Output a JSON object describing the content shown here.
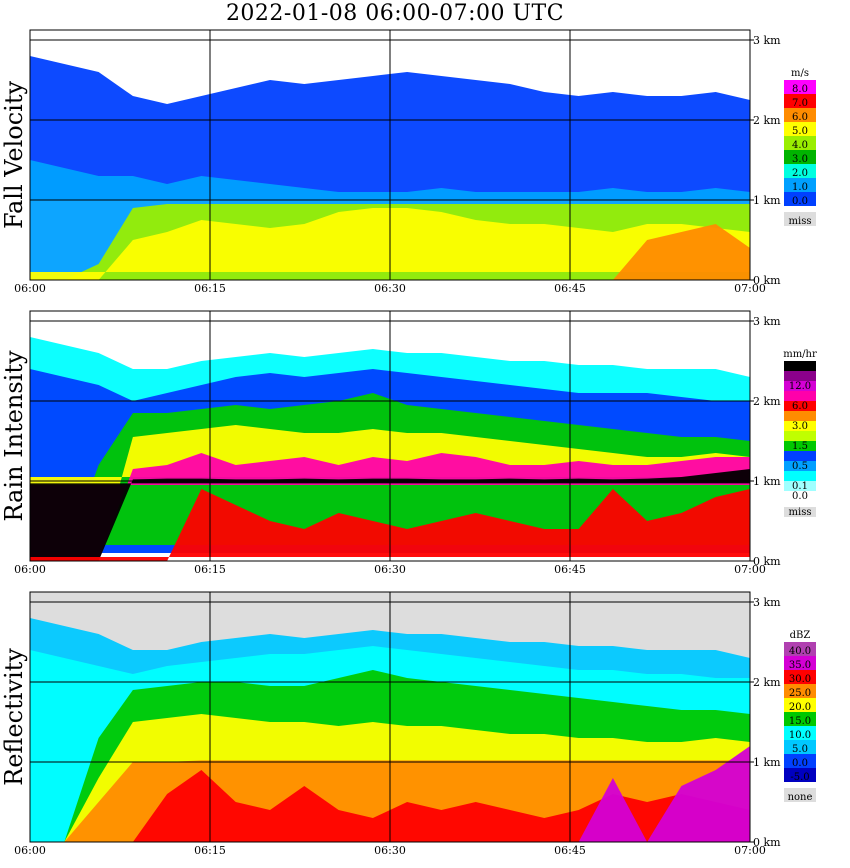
{
  "chart_data": {
    "type": "heatmap",
    "title": "2022-01-08   06:00-07:00 UTC",
    "x_ticks": [
      "06:00",
      "06:15",
      "06:30",
      "06:45",
      "07:00"
    ],
    "y_ticks": [
      "0 km",
      "1 km",
      "2 km",
      "3 km"
    ],
    "ylim_km": [
      0,
      3
    ],
    "panels": [
      {
        "ylabel": "Fall Velocity",
        "unit": "m/s",
        "legend": [
          {
            "label": "8.0",
            "color": "#ff00ff"
          },
          {
            "label": "7.0",
            "color": "#ff0000"
          },
          {
            "label": "6.0",
            "color": "#ff8c00"
          },
          {
            "label": "5.0",
            "color": "#ffff00"
          },
          {
            "label": "4.0",
            "color": "#9aee00"
          },
          {
            "label": "3.0",
            "color": "#00b400"
          },
          {
            "label": "2.0",
            "color": "#00ffe0"
          },
          {
            "label": "1.0",
            "color": "#00a0ff"
          },
          {
            "label": "0.0",
            "color": "#0040ff"
          },
          {
            "label": "miss",
            "color": "#dddddd"
          }
        ],
        "bg": "#ffffff",
        "layers": [
          {
            "color": "#0040ff",
            "top": [
              2.8,
              2.7,
              2.6,
              2.3,
              2.2,
              2.3,
              2.4,
              2.5,
              2.45,
              2.5,
              2.55,
              2.6,
              2.55,
              2.5,
              2.45,
              2.35,
              2.3,
              2.35,
              2.3,
              2.3,
              2.35,
              2.25
            ],
            "bottom": 1.0
          },
          {
            "color": "#00a0ff",
            "top": [
              1.5,
              1.4,
              1.3,
              1.3,
              1.2,
              1.3,
              1.25,
              1.2,
              1.15,
              1.1,
              1.1,
              1.1,
              1.15,
              1.1,
              1.1,
              1.1,
              1.1,
              1.15,
              1.1,
              1.1,
              1.15,
              1.1
            ],
            "bottom": 0.0
          },
          {
            "color": "#9aee00",
            "top": [
              0.0,
              0.0,
              0.2,
              0.9,
              0.95,
              0.95,
              0.95,
              0.95,
              0.95,
              0.95,
              0.95,
              0.95,
              0.95,
              0.95,
              0.95,
              0.95,
              0.95,
              0.95,
              0.95,
              0.95,
              0.95,
              0.95
            ],
            "bottom": 0.0
          },
          {
            "color": "#ffff00",
            "top": [
              0.0,
              0.0,
              0.0,
              0.5,
              0.6,
              0.75,
              0.7,
              0.65,
              0.7,
              0.85,
              0.9,
              0.9,
              0.85,
              0.75,
              0.7,
              0.7,
              0.65,
              0.6,
              0.7,
              0.7,
              0.65,
              0.6
            ],
            "bottom": 0.1
          },
          {
            "color": "#ff8c00",
            "top": [
              0.0,
              0.0,
              0.0,
              0.0,
              0.0,
              0.0,
              0.0,
              0.0,
              0.0,
              0.0,
              0.0,
              0.0,
              0.0,
              0.0,
              0.0,
              0.0,
              0.0,
              0.0,
              0.5,
              0.6,
              0.7,
              0.4
            ],
            "bottom": 0.0
          }
        ]
      },
      {
        "ylabel": "Rain Intensity",
        "unit": "mm/hr",
        "legend": [
          {
            "label": "48.0",
            "color": "#000000"
          },
          {
            "label": "",
            "color": "#8b008b"
          },
          {
            "label": "12.0",
            "color": "#d400d4"
          },
          {
            "label": "",
            "color": "#ff00aa"
          },
          {
            "label": "6.0",
            "color": "#ff0000"
          },
          {
            "label": "",
            "color": "#ff8c00"
          },
          {
            "label": "3.0",
            "color": "#ffff00"
          },
          {
            "label": "",
            "color": "#c0ff00"
          },
          {
            "label": "1.5",
            "color": "#00c800"
          },
          {
            "label": "",
            "color": "#0040ff"
          },
          {
            "label": "0.5",
            "color": "#00a0ff"
          },
          {
            "label": "",
            "color": "#00ffff"
          },
          {
            "label": "0.1",
            "color": "#a0ffff"
          },
          {
            "label": "0.0",
            "color": "#ffffff"
          },
          {
            "label": "miss",
            "color": "#dddddd"
          }
        ],
        "bg": "#ffffff",
        "layers": [
          {
            "color": "#00ffff",
            "top": [
              2.8,
              2.7,
              2.6,
              2.4,
              2.4,
              2.5,
              2.55,
              2.6,
              2.55,
              2.6,
              2.65,
              2.6,
              2.6,
              2.55,
              2.5,
              2.5,
              2.45,
              2.45,
              2.4,
              2.4,
              2.4,
              2.3
            ],
            "bottom": 0.1
          },
          {
            "color": "#0040ff",
            "top": [
              2.4,
              2.3,
              2.2,
              2.0,
              2.1,
              2.2,
              2.3,
              2.35,
              2.3,
              2.35,
              2.4,
              2.35,
              2.3,
              2.25,
              2.2,
              2.15,
              2.1,
              2.1,
              2.1,
              2.05,
              2.0,
              2.0
            ],
            "bottom": 0.1
          },
          {
            "color": "#00c800",
            "top": [
              0.0,
              0.0,
              1.2,
              1.85,
              1.85,
              1.9,
              1.95,
              1.9,
              1.95,
              2.0,
              2.1,
              1.95,
              1.9,
              1.85,
              1.8,
              1.75,
              1.7,
              1.65,
              1.6,
              1.55,
              1.55,
              1.5
            ],
            "bottom": 0.2
          },
          {
            "color": "#ffff00",
            "top": [
              0.0,
              0.0,
              0.0,
              1.55,
              1.6,
              1.65,
              1.7,
              1.65,
              1.6,
              1.6,
              1.65,
              1.6,
              1.6,
              1.55,
              1.5,
              1.45,
              1.4,
              1.35,
              1.3,
              1.3,
              1.35,
              1.3
            ],
            "bottom": 1.05
          },
          {
            "color": "#ff00aa",
            "top": [
              0.0,
              0.0,
              0.0,
              1.15,
              1.2,
              1.35,
              1.2,
              1.25,
              1.3,
              1.2,
              1.3,
              1.25,
              1.35,
              1.3,
              1.2,
              1.2,
              1.25,
              1.2,
              1.2,
              1.25,
              1.3,
              1.3
            ],
            "bottom": 0.95
          },
          {
            "color": "#000000",
            "top": [
              0.0,
              0.0,
              0.0,
              1.02,
              1.03,
              1.03,
              1.02,
              1.02,
              1.03,
              1.02,
              1.03,
              1.03,
              1.02,
              1.02,
              1.03,
              1.02,
              1.03,
              1.02,
              1.03,
              1.05,
              1.1,
              1.15
            ],
            "bottom": 0.97
          },
          {
            "color": "#ff0000",
            "top": [
              0.0,
              0.0,
              0.0,
              0.0,
              0.0,
              0.9,
              0.7,
              0.5,
              0.4,
              0.6,
              0.5,
              0.4,
              0.5,
              0.6,
              0.5,
              0.4,
              0.4,
              0.9,
              0.5,
              0.6,
              0.8,
              0.9
            ],
            "bottom": 0.05
          }
        ]
      },
      {
        "ylabel": "Reflectivity",
        "unit": "dBZ",
        "legend": [
          {
            "label": "40.0",
            "color": "#b040b0"
          },
          {
            "label": "35.0",
            "color": "#d400d4"
          },
          {
            "label": "30.0",
            "color": "#ff0000"
          },
          {
            "label": "25.0",
            "color": "#ff8c00"
          },
          {
            "label": "20.0",
            "color": "#ffff00"
          },
          {
            "label": "15.0",
            "color": "#00c800"
          },
          {
            "label": "10.0",
            "color": "#00ffff"
          },
          {
            "label": "5.0",
            "color": "#00c8ff"
          },
          {
            "label": "0.0",
            "color": "#0040ff"
          },
          {
            "label": "-5.0",
            "color": "#0000c0"
          },
          {
            "label": "none",
            "color": "#dddddd"
          }
        ],
        "bg": "#dddddd",
        "layers": [
          {
            "color": "#00c8ff",
            "top": [
              2.8,
              2.7,
              2.6,
              2.4,
              2.4,
              2.5,
              2.55,
              2.6,
              2.55,
              2.6,
              2.65,
              2.6,
              2.6,
              2.55,
              2.5,
              2.5,
              2.45,
              2.45,
              2.4,
              2.4,
              2.4,
              2.3
            ],
            "bottom": 0.0
          },
          {
            "color": "#00ffff",
            "top": [
              2.4,
              2.3,
              2.2,
              2.1,
              2.2,
              2.25,
              2.3,
              2.35,
              2.35,
              2.4,
              2.45,
              2.4,
              2.35,
              2.3,
              2.25,
              2.2,
              2.15,
              2.15,
              2.1,
              2.1,
              2.05,
              2.05
            ],
            "bottom": 0.0
          },
          {
            "color": "#00c800",
            "top": [
              0.0,
              0.0,
              1.3,
              1.9,
              1.95,
              2.0,
              2.0,
              1.95,
              1.95,
              2.05,
              2.15,
              2.05,
              2.0,
              1.95,
              1.9,
              1.85,
              1.8,
              1.75,
              1.7,
              1.65,
              1.65,
              1.6
            ],
            "bottom": 0.0
          },
          {
            "color": "#ffff00",
            "top": [
              0.0,
              0.0,
              0.8,
              1.5,
              1.55,
              1.6,
              1.55,
              1.5,
              1.5,
              1.45,
              1.5,
              1.45,
              1.45,
              1.4,
              1.35,
              1.35,
              1.3,
              1.3,
              1.25,
              1.25,
              1.3,
              1.25
            ],
            "bottom": 0.0
          },
          {
            "color": "#ff8c00",
            "top": [
              0.0,
              0.0,
              0.5,
              1.0,
              1.0,
              1.02,
              1.02,
              1.02,
              1.02,
              1.02,
              1.02,
              1.02,
              1.02,
              1.02,
              1.02,
              1.02,
              1.02,
              1.02,
              1.02,
              1.02,
              1.02,
              1.02
            ],
            "bottom": 0.0
          },
          {
            "color": "#ff0000",
            "top": [
              0.0,
              0.0,
              0.0,
              0.0,
              0.6,
              0.9,
              0.5,
              0.4,
              0.7,
              0.4,
              0.3,
              0.5,
              0.4,
              0.5,
              0.4,
              0.3,
              0.4,
              0.6,
              0.5,
              0.6,
              0.5,
              0.4
            ],
            "bottom": 0.0
          },
          {
            "color": "#d400d4",
            "top": [
              0.0,
              0.0,
              0.0,
              0.0,
              0.0,
              0.0,
              0.0,
              0.0,
              0.0,
              0.0,
              0.0,
              0.0,
              0.0,
              0.0,
              0.0,
              0.0,
              0.0,
              0.8,
              0.0,
              0.7,
              0.9,
              1.2
            ],
            "bottom": 0.0
          }
        ]
      }
    ]
  }
}
